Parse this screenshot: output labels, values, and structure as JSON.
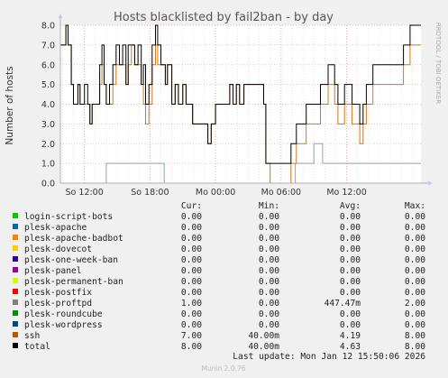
{
  "chart_data": {
    "type": "line",
    "title": "Hosts blacklisted by fail2ban - by day",
    "ylabel": "Number of hosts",
    "ylim": [
      0,
      8
    ],
    "yticks": [
      "0.0",
      "1.0",
      "2.0",
      "3.0",
      "4.0",
      "5.0",
      "6.0",
      "7.0",
      "8.0"
    ],
    "xticks": [
      "So 12:00",
      "So 18:00",
      "Mo 00:00",
      "Mo 06:00",
      "Mo 12:00"
    ],
    "xtick_hours": [
      12,
      18,
      24,
      30,
      36
    ],
    "x_hour_range": [
      9.8,
      42.8
    ],
    "side_label": "RRDTOOL / TOBI OETIKER",
    "series": [
      {
        "name": "ssh",
        "color": "#cc7a19",
        "points": [
          [
            9.8,
            7
          ],
          [
            10.3,
            8
          ],
          [
            10.5,
            7
          ],
          [
            10.8,
            5
          ],
          [
            11.0,
            4
          ],
          [
            11.4,
            5
          ],
          [
            11.6,
            4
          ],
          [
            12.0,
            4
          ],
          [
            12.3,
            4
          ],
          [
            12.5,
            3
          ],
          [
            12.7,
            4
          ],
          [
            13.4,
            5
          ],
          [
            13.6,
            6
          ],
          [
            13.8,
            5
          ],
          [
            14.0,
            4
          ],
          [
            14.3,
            4
          ],
          [
            14.6,
            5
          ],
          [
            14.9,
            6
          ],
          [
            15.2,
            6
          ],
          [
            15.5,
            6
          ],
          [
            15.8,
            5
          ],
          [
            16.0,
            6
          ],
          [
            16.3,
            7
          ],
          [
            16.6,
            6
          ],
          [
            16.9,
            6
          ],
          [
            17.2,
            5
          ],
          [
            17.4,
            4
          ],
          [
            17.6,
            3
          ],
          [
            17.9,
            4
          ],
          [
            18.2,
            6
          ],
          [
            18.5,
            7
          ],
          [
            18.7,
            6
          ],
          [
            19.0,
            6
          ],
          [
            19.4,
            5
          ],
          [
            19.6,
            6
          ],
          [
            20.0,
            4
          ],
          [
            20.3,
            5
          ],
          [
            20.6,
            4
          ],
          [
            21.0,
            5
          ],
          [
            21.3,
            4
          ],
          [
            21.6,
            4
          ],
          [
            21.9,
            3
          ],
          [
            22.3,
            3
          ],
          [
            22.8,
            3
          ],
          [
            23.0,
            3
          ],
          [
            23.3,
            2
          ],
          [
            23.6,
            3
          ],
          [
            24.0,
            4
          ],
          [
            24.3,
            4
          ],
          [
            24.6,
            4
          ],
          [
            25.0,
            4
          ],
          [
            25.3,
            5
          ],
          [
            25.6,
            4
          ],
          [
            25.9,
            5
          ],
          [
            26.2,
            4
          ],
          [
            26.6,
            5
          ],
          [
            27.0,
            5
          ],
          [
            27.5,
            5
          ],
          [
            28.0,
            5
          ],
          [
            28.4,
            4
          ],
          [
            28.6,
            1
          ],
          [
            29.0,
            0
          ],
          [
            29.5,
            0
          ],
          [
            30.0,
            0
          ],
          [
            30.6,
            0
          ],
          [
            30.9,
            1
          ],
          [
            31.1,
            1
          ],
          [
            31.4,
            2
          ],
          [
            31.7,
            2
          ],
          [
            32.0,
            2
          ],
          [
            32.3,
            3
          ],
          [
            32.6,
            3
          ],
          [
            33.0,
            3
          ],
          [
            33.4,
            3
          ],
          [
            33.6,
            4
          ],
          [
            34.0,
            4
          ],
          [
            34.3,
            5
          ],
          [
            34.6,
            5
          ],
          [
            34.9,
            4
          ],
          [
            35.2,
            3
          ],
          [
            35.5,
            3
          ],
          [
            35.8,
            4
          ],
          [
            36.1,
            4
          ],
          [
            36.5,
            3
          ],
          [
            36.9,
            3
          ],
          [
            37.2,
            2
          ],
          [
            37.5,
            3
          ],
          [
            37.8,
            4
          ],
          [
            38.1,
            4
          ],
          [
            38.4,
            5
          ],
          [
            38.7,
            5
          ],
          [
            39.0,
            5
          ],
          [
            39.3,
            5
          ],
          [
            39.6,
            5
          ],
          [
            39.9,
            5
          ],
          [
            40.2,
            5
          ],
          [
            40.5,
            5
          ],
          [
            40.8,
            5
          ],
          [
            41.2,
            6
          ],
          [
            41.5,
            6
          ],
          [
            41.8,
            7
          ],
          [
            42.0,
            7
          ],
          [
            42.4,
            7
          ],
          [
            42.8,
            7
          ]
        ]
      },
      {
        "name": "total",
        "color": "#000000",
        "points": [
          [
            9.8,
            7
          ],
          [
            10.3,
            8
          ],
          [
            10.5,
            7
          ],
          [
            10.8,
            5
          ],
          [
            11.0,
            4
          ],
          [
            11.4,
            5
          ],
          [
            11.6,
            4
          ],
          [
            12.0,
            5
          ],
          [
            12.3,
            4
          ],
          [
            12.5,
            3
          ],
          [
            12.7,
            4
          ],
          [
            13.4,
            6
          ],
          [
            13.6,
            7
          ],
          [
            13.8,
            5
          ],
          [
            14.0,
            4
          ],
          [
            14.3,
            5
          ],
          [
            14.6,
            6
          ],
          [
            14.9,
            7
          ],
          [
            15.2,
            6
          ],
          [
            15.5,
            7
          ],
          [
            15.8,
            5
          ],
          [
            16.0,
            7
          ],
          [
            16.3,
            7
          ],
          [
            16.6,
            6
          ],
          [
            16.9,
            7
          ],
          [
            17.2,
            5
          ],
          [
            17.4,
            6
          ],
          [
            17.6,
            4
          ],
          [
            17.9,
            5
          ],
          [
            18.2,
            7
          ],
          [
            18.5,
            8
          ],
          [
            18.7,
            7
          ],
          [
            19.0,
            6
          ],
          [
            19.4,
            5
          ],
          [
            19.6,
            6
          ],
          [
            20.0,
            4
          ],
          [
            20.3,
            5
          ],
          [
            20.6,
            4
          ],
          [
            21.0,
            5
          ],
          [
            21.3,
            4
          ],
          [
            21.6,
            4
          ],
          [
            21.9,
            3
          ],
          [
            22.3,
            3
          ],
          [
            22.8,
            3
          ],
          [
            23.0,
            3
          ],
          [
            23.3,
            2
          ],
          [
            23.6,
            3
          ],
          [
            24.0,
            4
          ],
          [
            24.3,
            4
          ],
          [
            24.6,
            4
          ],
          [
            25.0,
            4
          ],
          [
            25.3,
            5
          ],
          [
            25.6,
            4
          ],
          [
            25.9,
            5
          ],
          [
            26.2,
            4
          ],
          [
            26.6,
            5
          ],
          [
            27.0,
            5
          ],
          [
            27.5,
            5
          ],
          [
            28.0,
            5
          ],
          [
            28.4,
            4
          ],
          [
            28.6,
            1
          ],
          [
            29.0,
            1
          ],
          [
            29.5,
            1
          ],
          [
            30.0,
            1
          ],
          [
            30.6,
            1
          ],
          [
            30.9,
            2
          ],
          [
            31.1,
            2
          ],
          [
            31.4,
            3
          ],
          [
            31.7,
            3
          ],
          [
            32.0,
            3
          ],
          [
            32.3,
            4
          ],
          [
            32.6,
            4
          ],
          [
            33.0,
            4
          ],
          [
            33.4,
            4
          ],
          [
            33.6,
            5
          ],
          [
            34.0,
            5
          ],
          [
            34.3,
            6
          ],
          [
            34.6,
            6
          ],
          [
            34.9,
            5
          ],
          [
            35.2,
            4
          ],
          [
            35.5,
            4
          ],
          [
            35.8,
            5
          ],
          [
            36.1,
            5
          ],
          [
            36.5,
            4
          ],
          [
            36.9,
            4
          ],
          [
            37.2,
            3
          ],
          [
            37.5,
            4
          ],
          [
            37.8,
            5
          ],
          [
            38.1,
            5
          ],
          [
            38.4,
            6
          ],
          [
            38.7,
            6
          ],
          [
            39.0,
            6
          ],
          [
            39.3,
            6
          ],
          [
            39.6,
            6
          ],
          [
            39.9,
            6
          ],
          [
            40.2,
            6
          ],
          [
            40.5,
            6
          ],
          [
            40.8,
            6
          ],
          [
            41.2,
            7
          ],
          [
            41.5,
            7
          ],
          [
            41.8,
            8
          ],
          [
            42.0,
            8
          ],
          [
            42.4,
            8
          ],
          [
            42.8,
            8
          ]
        ]
      },
      {
        "name": "plesk-proftpd",
        "color": "#8da3b5",
        "points": [
          [
            9.8,
            0
          ],
          [
            14.0,
            0
          ],
          [
            14.0,
            1
          ],
          [
            19.3,
            1
          ],
          [
            19.3,
            0
          ],
          [
            31.3,
            0
          ],
          [
            31.3,
            1
          ],
          [
            33.0,
            1
          ],
          [
            33.0,
            2
          ],
          [
            33.8,
            2
          ],
          [
            33.8,
            1
          ],
          [
            42.8,
            1
          ]
        ]
      }
    ]
  },
  "legend": {
    "headers": {
      "cur": "Cur:",
      "min": "Min:",
      "avg": "Avg:",
      "max": "Max:"
    },
    "rows": [
      {
        "name": "login-script-bots",
        "color": "#00cc00",
        "cur": "0.00",
        "min": "0.00",
        "avg": "0.00",
        "max": "0.00"
      },
      {
        "name": "plesk-apache",
        "color": "#0066b3",
        "cur": "0.00",
        "min": "0.00",
        "avg": "0.00",
        "max": "0.00"
      },
      {
        "name": "plesk-apache-badbot",
        "color": "#ff8000",
        "cur": "0.00",
        "min": "0.00",
        "avg": "0.00",
        "max": "0.00"
      },
      {
        "name": "plesk-dovecot",
        "color": "#ffcc00",
        "cur": "0.00",
        "min": "0.00",
        "avg": "0.00",
        "max": "0.00"
      },
      {
        "name": "plesk-one-week-ban",
        "color": "#330099",
        "cur": "0.00",
        "min": "0.00",
        "avg": "0.00",
        "max": "0.00"
      },
      {
        "name": "plesk-panel",
        "color": "#990099",
        "cur": "0.00",
        "min": "0.00",
        "avg": "0.00",
        "max": "0.00"
      },
      {
        "name": "plesk-permanent-ban",
        "color": "#ccff00",
        "cur": "0.00",
        "min": "0.00",
        "avg": "0.00",
        "max": "0.00"
      },
      {
        "name": "plesk-postfix",
        "color": "#ff0000",
        "cur": "0.00",
        "min": "0.00",
        "avg": "0.00",
        "max": "0.00"
      },
      {
        "name": "plesk-proftpd",
        "color": "#808080",
        "cur": "1.00",
        "min": "0.00",
        "avg": "447.47m",
        "max": "2.00"
      },
      {
        "name": "plesk-roundcube",
        "color": "#008f00",
        "cur": "0.00",
        "min": "0.00",
        "avg": "0.00",
        "max": "0.00"
      },
      {
        "name": "plesk-wordpress",
        "color": "#00487d",
        "cur": "0.00",
        "min": "0.00",
        "avg": "0.00",
        "max": "0.00"
      },
      {
        "name": "ssh",
        "color": "#b35a00",
        "cur": "7.00",
        "min": "40.00m",
        "avg": "4.19",
        "max": "8.00"
      },
      {
        "name": "total",
        "color": "#000000",
        "cur": "8.00",
        "min": "40.00m",
        "avg": "4.63",
        "max": "8.00"
      }
    ]
  },
  "last_update": "Last update:  Mon Jan 12 15:50:06 2026",
  "footer": "Munin 2.0.76"
}
